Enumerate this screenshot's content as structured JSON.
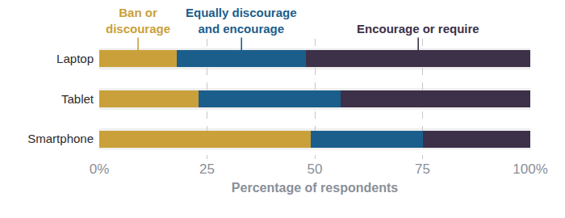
{
  "chart_data": {
    "type": "bar",
    "orientation": "horizontal",
    "stacked": true,
    "categories": [
      "Laptop",
      "Tablet",
      "Smartphone"
    ],
    "series": [
      {
        "name": "Ban or\ndiscourage",
        "color": "#c9a03a",
        "values": [
          18,
          23,
          49
        ]
      },
      {
        "name": "Equally discourage\nand encourage",
        "color": "#1b5e8c",
        "values": [
          30,
          33,
          26
        ]
      },
      {
        "name": "Encourage or require",
        "color": "#3c3148",
        "values": [
          52,
          44,
          25
        ]
      }
    ],
    "xlabel": "Percentage of respondents",
    "xlim": [
      0,
      100
    ],
    "xticks": [
      {
        "value": 0,
        "label": "0%"
      },
      25,
      50,
      75,
      {
        "value": 100,
        "label": "100%"
      }
    ],
    "grid": true
  }
}
